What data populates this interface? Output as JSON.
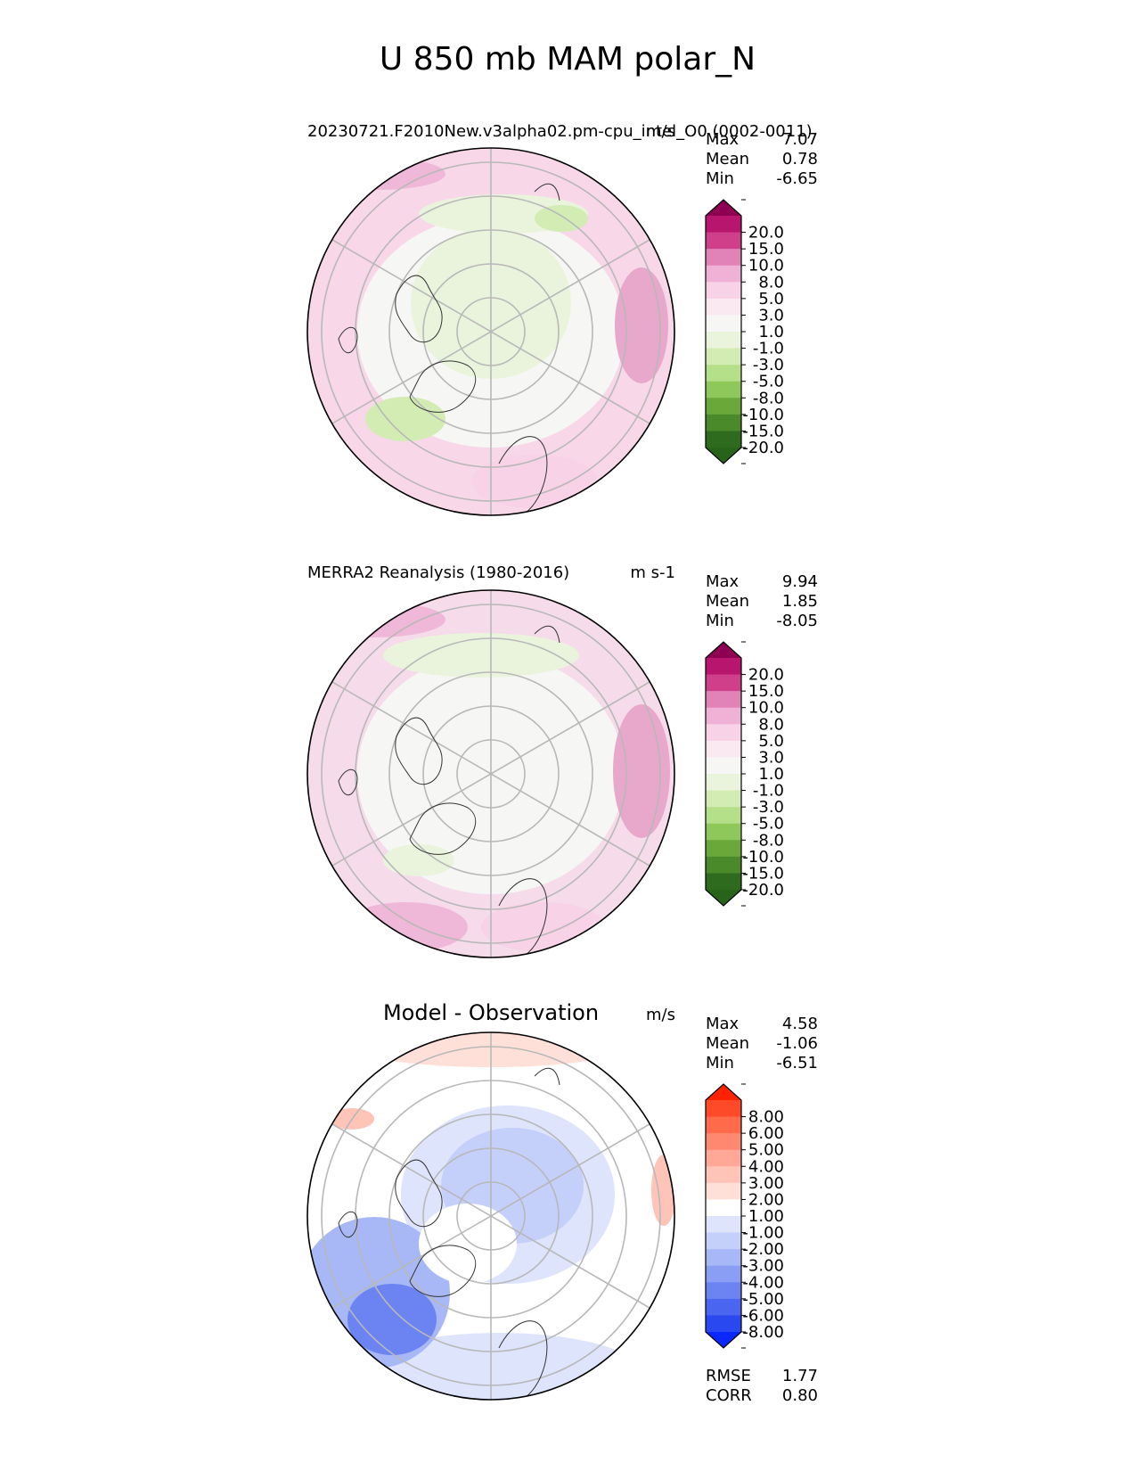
{
  "figure": {
    "title": "U 850 mb MAM polar_N"
  },
  "chart_data": [
    {
      "type": "heatmap",
      "projection": "north-polar-stereographic",
      "title": "20230721.F2010New.v3alpha02.pm-cpu_intel_O0 (0002-0011)",
      "units": "m/s",
      "stats": {
        "max_label": "Max",
        "max": "7.07",
        "mean_label": "Mean",
        "mean": "0.78",
        "min_label": "Min",
        "min": "-6.65"
      },
      "colorbar": {
        "ticks": [
          "20.0",
          "15.0",
          "10.0",
          "8.0",
          "5.0",
          "3.0",
          "1.0",
          "-1.0",
          "-3.0",
          "-5.0",
          "-8.0",
          "-10.0",
          "-15.0",
          "-20.0"
        ],
        "colors": [
          "#8e0152",
          "#b8166e",
          "#d0408a",
          "#e283b8",
          "#f0b1d6",
          "#f8d2e6",
          "#fbe9f2",
          "#f6f6f4",
          "#eaf4dc",
          "#d2ecb4",
          "#b4e08a",
          "#8ec85a",
          "#6aa83a",
          "#4a8a2a",
          "#2e6b1e",
          "#276419"
        ],
        "extend": "both"
      },
      "background_color": "#f8d8e8"
    },
    {
      "type": "heatmap",
      "projection": "north-polar-stereographic",
      "title": "MERRA2 Reanalysis (1980-2016)",
      "units": "m s-1",
      "stats": {
        "max_label": "Max",
        "max": "9.94",
        "mean_label": "Mean",
        "mean": "1.85",
        "min_label": "Min",
        "min": "-8.05"
      },
      "colorbar": {
        "ticks": [
          "20.0",
          "15.0",
          "10.0",
          "8.0",
          "5.0",
          "3.0",
          "1.0",
          "-1.0",
          "-3.0",
          "-5.0",
          "-8.0",
          "-10.0",
          "-15.0",
          "-20.0"
        ],
        "colors": [
          "#8e0152",
          "#b8166e",
          "#d0408a",
          "#e283b8",
          "#f0b1d6",
          "#f8d2e6",
          "#fbe9f2",
          "#f6f6f4",
          "#eaf4dc",
          "#d2ecb4",
          "#b4e08a",
          "#8ec85a",
          "#6aa83a",
          "#4a8a2a",
          "#2e6b1e",
          "#276419"
        ],
        "extend": "both"
      },
      "background_color": "#f6dcea"
    },
    {
      "type": "heatmap",
      "projection": "north-polar-stereographic",
      "title": "Model - Observation",
      "units": "m/s",
      "stats": {
        "max_label": "Max",
        "max": "4.58",
        "mean_label": "Mean",
        "mean": "-1.06",
        "min_label": "Min",
        "min": "-6.51"
      },
      "colorbar": {
        "ticks": [
          "8.00",
          "6.00",
          "5.00",
          "4.00",
          "3.00",
          "2.00",
          "1.00",
          "-1.00",
          "-2.00",
          "-3.00",
          "-4.00",
          "-5.00",
          "-6.00",
          "-8.00"
        ],
        "colors": [
          "#ff2200",
          "#ff4a2a",
          "#ff6a4a",
          "#ff8870",
          "#ffa898",
          "#ffc4b8",
          "#ffe0d8",
          "#ffffff",
          "#dde4fc",
          "#c4cffa",
          "#a8b8f6",
          "#8a9ef4",
          "#6c84f2",
          "#4a66f0",
          "#2a48f0",
          "#0a28ff"
        ],
        "extend": "both"
      },
      "background_color": "#ffffff",
      "footer": {
        "rmse_label": "RMSE",
        "rmse": "1.77",
        "corr_label": "CORR",
        "corr": "0.80"
      }
    }
  ]
}
